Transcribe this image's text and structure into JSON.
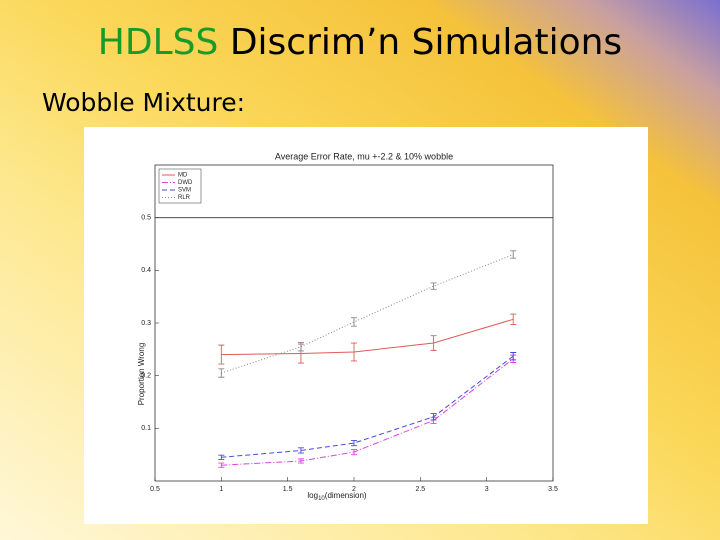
{
  "slide": {
    "title_highlight": "HDLSS",
    "title_rest": "Discrim’n Simulations",
    "subtitle": "Wobble Mixture:"
  },
  "chart_data": {
    "type": "line",
    "title": "Average Error Rate, mu +-2.2 & 10% wobble",
    "xlabel": {
      "base": "log",
      "sub": "10",
      "rest": "(dimension)"
    },
    "ylabel": "Proportion Wrong",
    "x": [
      1,
      1.6,
      2,
      2.6,
      3.2
    ],
    "series": [
      {
        "name": "MD",
        "color": "#e05a5a",
        "dash": "none",
        "values": [
          0.24,
          0.242,
          0.245,
          0.262,
          0.307
        ],
        "errors": [
          0.018,
          0.018,
          0.017,
          0.014,
          0.01
        ]
      },
      {
        "name": "DWD",
        "color": "#e040e0",
        "dash": "6 2 1 2",
        "values": [
          0.03,
          0.038,
          0.055,
          0.115,
          0.232
        ],
        "errors": [
          0.004,
          0.004,
          0.005,
          0.006,
          0.007
        ]
      },
      {
        "name": "SVM",
        "color": "#4848d8",
        "dash": "5 3",
        "values": [
          0.045,
          0.058,
          0.072,
          0.122,
          0.237
        ],
        "errors": [
          0.004,
          0.005,
          0.005,
          0.006,
          0.007
        ]
      },
      {
        "name": "RLR",
        "color": "#888888",
        "dash": "1 2",
        "values": [
          0.205,
          0.255,
          0.302,
          0.37,
          0.43
        ],
        "errors": [
          0.008,
          0.008,
          0.008,
          0.006,
          0.007
        ]
      }
    ],
    "xlim": [
      0.5,
      3.5
    ],
    "xticks": [
      0.5,
      1,
      1.5,
      2,
      2.5,
      3,
      3.5
    ],
    "ylim": [
      0,
      0.6
    ],
    "yticks": [
      0.1,
      0.2,
      0.3,
      0.4,
      0.5
    ],
    "reference_line": 0.5,
    "legend": "top-left"
  }
}
